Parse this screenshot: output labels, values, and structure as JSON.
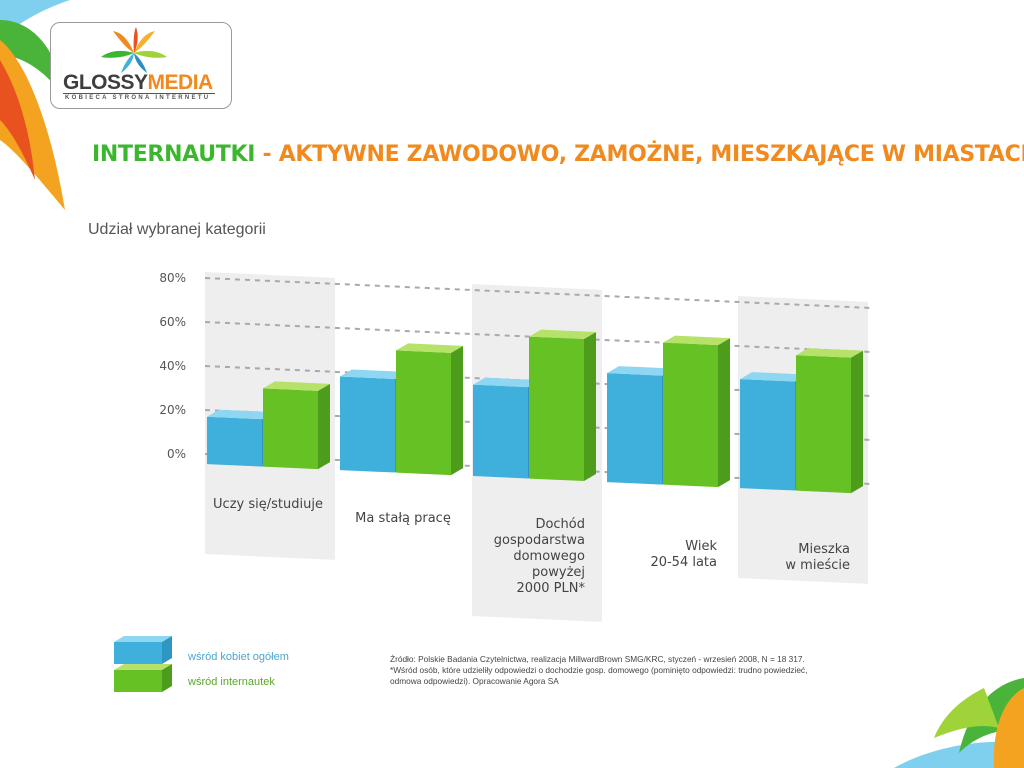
{
  "logo": {
    "brand_part1": "GLOSSY",
    "brand_part2": "MEDIA",
    "tagline": "KOBIECA STRONA INTERNETU"
  },
  "title": {
    "part1": "INTERNAUTKI",
    "dash": " - ",
    "part2": "AKTYWNE ZAWODOWO, ZAMOŻNE, MIESZKAJĄCE W MIASTACH"
  },
  "subtitle": "Udział wybranej kategorii",
  "legend": {
    "blue_label": "wśród kobiet ogółem",
    "green_label": "wśród internautek"
  },
  "source": {
    "line1": "Źródło: Polskie Badania Czytelnictwa, realizacja MillwardBrown SMG/KRC, styczeń - wrzesień 2008, N = 18 317.",
    "line2": "*Wśród osób, które udzieliły odpowiedzi o dochodzie gosp. domowego (pominięto odpowiedzi: trudno powiedzieć, odmowa odpowiedzi). Opracowanie Agora SA"
  },
  "colors": {
    "blue": "#3fb0dc",
    "green": "#66c125",
    "title_green": "#3ab72e",
    "title_orange": "#f0891e"
  },
  "chart_data": {
    "type": "bar",
    "yticks": [
      "80%",
      "60%",
      "40%",
      "20%",
      "0%"
    ],
    "ylim": [
      0,
      80
    ],
    "categories": [
      [
        "Uczy się/studiuje"
      ],
      [
        "Ma stałą pracę"
      ],
      [
        "Dochód",
        "gospodarstwa",
        "domowego",
        "powyżej",
        "2000 PLN*"
      ],
      [
        "Wiek",
        "20-54 lata"
      ],
      [
        "Mieszka",
        "w mieście"
      ]
    ],
    "series": [
      {
        "name": "wśród kobiet ogółem",
        "values": [
          17,
          38,
          37,
          45,
          45
        ]
      },
      {
        "name": "wśród internautek",
        "values": [
          31,
          51,
          60,
          60,
          57
        ]
      }
    ],
    "grid": true,
    "legend_position": "bottom-left"
  }
}
